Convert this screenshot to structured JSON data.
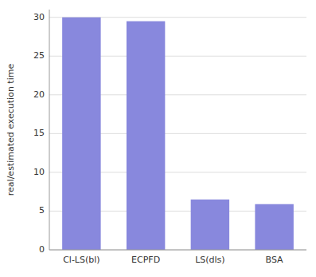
{
  "chart_data": {
    "type": "bar",
    "categories": [
      "Cl-LS(bl)",
      "ECPFD",
      "LS(dls)",
      "BSA"
    ],
    "values": [
      30.0,
      29.5,
      6.5,
      5.9
    ],
    "color": "#8888dd",
    "ylabel": "real/estimated execution time",
    "ylim": [
      0,
      31
    ],
    "yticks": [
      0,
      5,
      10,
      15,
      20,
      25,
      30
    ],
    "grid": true
  }
}
